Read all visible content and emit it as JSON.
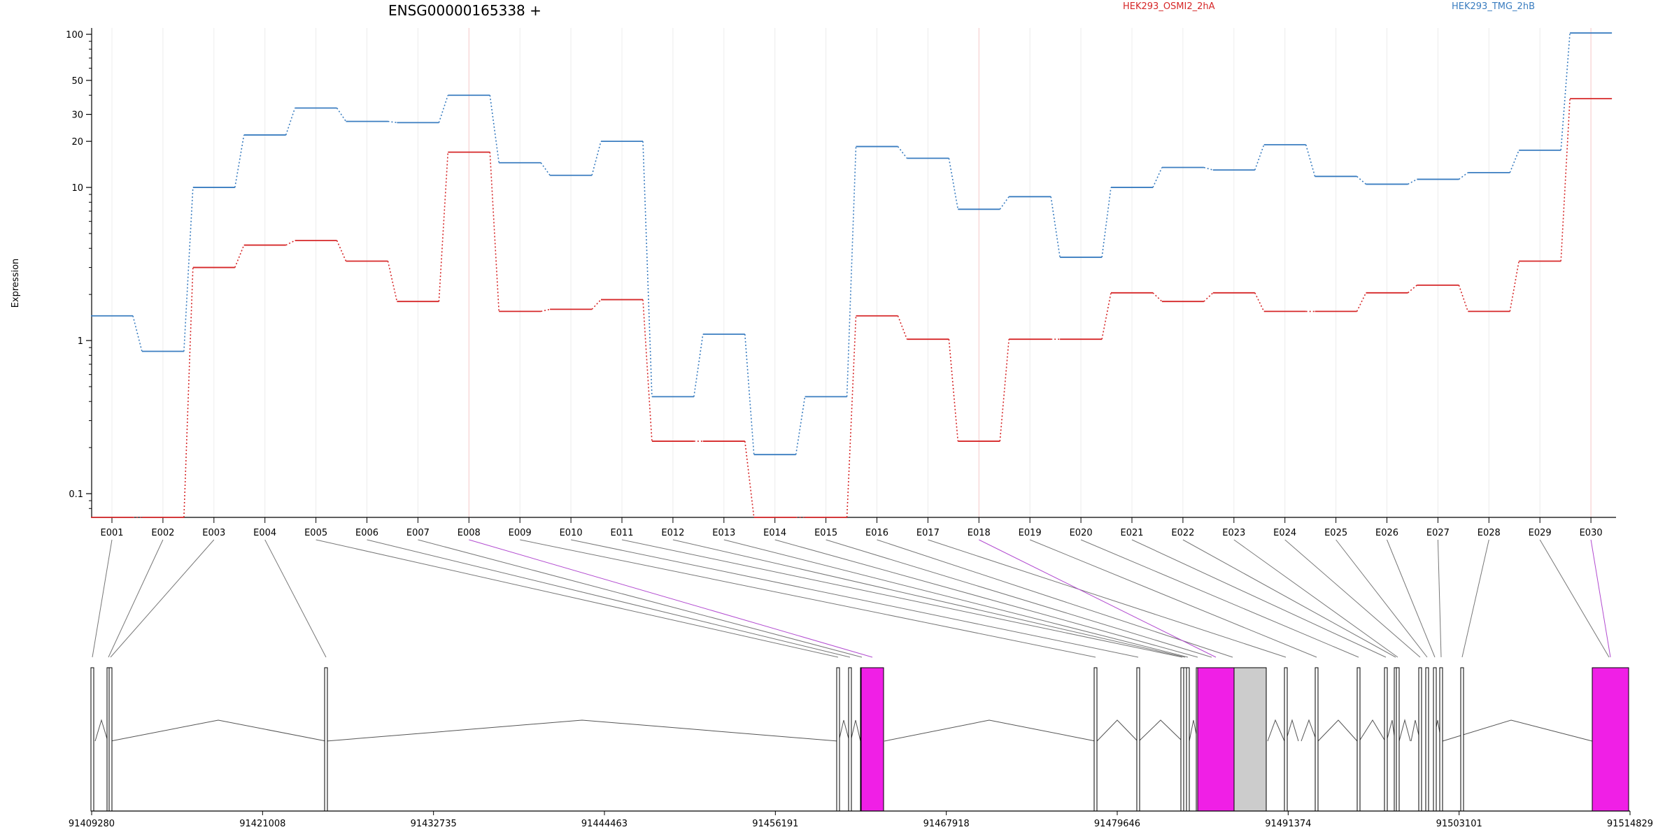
{
  "chart_data": {
    "type": "line",
    "title": "ENSG00000165338 +",
    "ylabel": "Expression",
    "xlabel": "",
    "y_scale": "log",
    "y_ticks": [
      0.1,
      1,
      10,
      20,
      30,
      50,
      100
    ],
    "y_tick_labels": [
      "0.1",
      "1",
      "10",
      "20",
      "30",
      "50",
      "100"
    ],
    "ylim": [
      0.07,
      110
    ],
    "categories": [
      "E001",
      "E002",
      "E003",
      "E004",
      "E005",
      "E006",
      "E007",
      "E008",
      "E009",
      "E010",
      "E011",
      "E012",
      "E013",
      "E014",
      "E015",
      "E016",
      "E017",
      "E018",
      "E019",
      "E020",
      "E021",
      "E022",
      "E023",
      "E024",
      "E025",
      "E026",
      "E027",
      "E028",
      "E029",
      "E030"
    ],
    "series": [
      {
        "name": "HEK293_OSMI2_2hA",
        "color": "#d62728",
        "values": [
          0.07,
          0.07,
          3.0,
          4.2,
          4.5,
          3.3,
          1.8,
          17,
          1.55,
          1.6,
          1.85,
          0.22,
          0.22,
          0.07,
          0.07,
          1.45,
          1.02,
          0.22,
          1.02,
          1.02,
          2.05,
          1.8,
          2.05,
          1.55,
          1.55,
          2.05,
          2.3,
          1.55,
          3.3,
          38
        ]
      },
      {
        "name": "HEK293_TMG_2hB",
        "color": "#3a7dc0",
        "values": [
          1.45,
          0.85,
          10,
          22,
          33,
          27,
          26.5,
          40,
          14.5,
          12,
          20,
          0.43,
          1.1,
          0.18,
          0.43,
          18.5,
          15.5,
          7.2,
          8.7,
          3.5,
          10,
          13.5,
          13,
          19,
          11.8,
          10.5,
          11.3,
          12.5,
          17.5,
          102
        ]
      }
    ],
    "legend_placement": "top-right",
    "grid": "vertical dotted per exon",
    "gene_model": {
      "axis_ticks": [
        "91409280",
        "91421008",
        "91432735",
        "91444463",
        "91456191",
        "91467918",
        "91479646",
        "91491374",
        "91503101",
        "91514829"
      ],
      "highlight_color": "#f01fe6",
      "highlighted_exons": [
        "E008",
        "E018",
        "E030"
      ],
      "gray_region_color": "#cccccc"
    }
  }
}
